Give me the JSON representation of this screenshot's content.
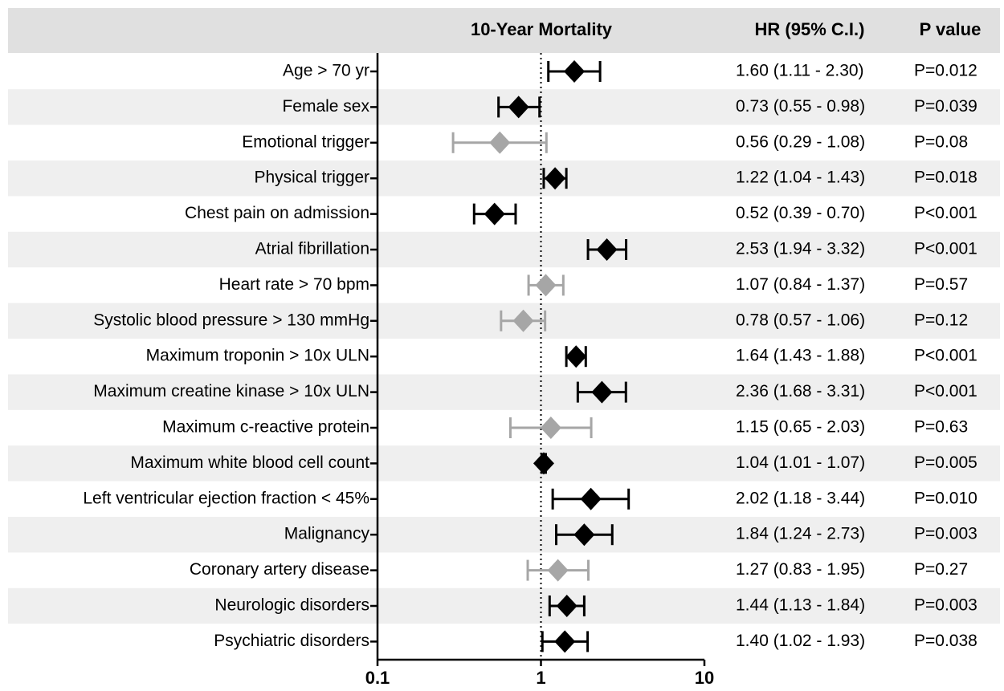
{
  "chart_data": {
    "type": "forest",
    "title": "10-Year Mortality",
    "hr_header": "HR (95% C.I.)",
    "p_header": "P value",
    "categories": [
      "Age > 70 yr",
      "Female sex",
      "Emotional trigger",
      "Physical trigger",
      "Chest pain on admission",
      "Atrial fibrillation",
      "Heart rate > 70 bpm",
      "Systolic blood pressure > 130 mmHg",
      "Maximum troponin > 10x ULN",
      "Maximum creatine kinase > 10x ULN",
      "Maximum c-reactive protein",
      "Maximum white blood cell count",
      "Left ventricular ejection fraction < 45%",
      "Malignancy",
      "Coronary artery disease",
      "Neurologic disorders",
      "Psychiatric disorders"
    ],
    "values": [
      1.6,
      0.73,
      0.56,
      1.22,
      0.52,
      2.53,
      1.07,
      0.78,
      1.64,
      2.36,
      1.15,
      1.04,
      2.02,
      1.84,
      1.27,
      1.44,
      1.4
    ],
    "lower": [
      1.11,
      0.55,
      0.29,
      1.04,
      0.39,
      1.94,
      0.84,
      0.57,
      1.43,
      1.68,
      0.65,
      1.01,
      1.18,
      1.24,
      0.83,
      1.13,
      1.02
    ],
    "upper": [
      2.3,
      0.98,
      1.08,
      1.43,
      0.7,
      3.32,
      1.37,
      1.06,
      1.88,
      3.31,
      2.03,
      1.07,
      3.44,
      2.73,
      1.95,
      1.84,
      1.93
    ],
    "value_labels": [
      "1.60 (1.11 - 2.30)",
      "0.73 (0.55 - 0.98)",
      "0.56 (0.29 - 1.08)",
      "1.22 (1.04 - 1.43)",
      "0.52 (0.39 - 0.70)",
      "2.53 (1.94 - 3.32)",
      "1.07 (0.84 - 1.37)",
      "0.78 (0.57 - 1.06)",
      "1.64 (1.43 - 1.88)",
      "2.36 (1.68 - 3.31)",
      "1.15 (0.65 - 2.03)",
      "1.04 (1.01 - 1.07)",
      "2.02 (1.18 - 3.44)",
      "1.84 (1.24 - 2.73)",
      "1.27 (0.83 - 1.95)",
      "1.44 (1.13 - 1.84)",
      "1.40 (1.02 - 1.93)"
    ],
    "p_values": [
      "P=0.012",
      "P=0.039",
      "P=0.08",
      "P=0.018",
      "P<0.001",
      "P<0.001",
      "P=0.57",
      "P=0.12",
      "P<0.001",
      "P<0.001",
      "P=0.63",
      "P=0.005",
      "P=0.010",
      "P=0.003",
      "P=0.27",
      "P=0.003",
      "P=0.038"
    ],
    "colors": [
      "#000000",
      "#000000",
      "#a6a6a6",
      "#000000",
      "#000000",
      "#000000",
      "#a6a6a6",
      "#a6a6a6",
      "#000000",
      "#000000",
      "#a6a6a6",
      "#000000",
      "#000000",
      "#000000",
      "#a6a6a6",
      "#000000",
      "#000000"
    ],
    "xlim": [
      0.1,
      10
    ],
    "xticks": [
      0.1,
      1,
      10
    ],
    "log_x": true,
    "reference_line": 1
  }
}
